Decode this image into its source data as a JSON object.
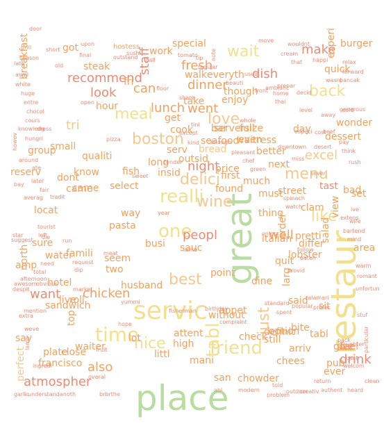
{
  "palette": {
    "orange": "#f3a15e",
    "peach": "#f6c88d",
    "salmon": "#ee8a72",
    "cream": "#f2e08e",
    "green": "#b9dca0"
  },
  "words": [
    {
      "text": "place",
      "c": "green"
    },
    {
      "text": "great",
      "c": "green"
    },
    {
      "text": "restaur",
      "c": "cream"
    },
    {
      "text": "servic",
      "c": "cream"
    },
    {
      "text": "time",
      "c": "cream"
    },
    {
      "text": "friend",
      "c": "cream"
    },
    {
      "text": "tabl",
      "c": "cream"
    },
    {
      "text": "realli",
      "c": "cream"
    },
    {
      "text": "one",
      "c": "cream"
    },
    {
      "text": "nice",
      "c": "cream"
    },
    {
      "text": "meal",
      "c": "cream"
    },
    {
      "text": "wait",
      "c": "cream"
    },
    {
      "text": "back",
      "c": "cream"
    },
    {
      "text": "like",
      "c": "cream"
    },
    {
      "text": "menu",
      "c": "peach"
    },
    {
      "text": "boston",
      "c": "peach"
    },
    {
      "text": "just",
      "c": "peach"
    },
    {
      "text": "best",
      "c": "peach"
    },
    {
      "text": "delici",
      "c": "peach"
    },
    {
      "text": "wine",
      "c": "peach"
    },
    {
      "text": "love",
      "c": "peach"
    },
    {
      "text": "staff",
      "c": "salmon"
    },
    {
      "text": "dish",
      "c": "salmon"
    },
    {
      "text": "make",
      "c": "salmon"
    },
    {
      "text": "recommend",
      "c": "salmon"
    },
    {
      "text": "look",
      "c": "salmon"
    },
    {
      "text": "tri",
      "c": "peach"
    },
    {
      "text": "excel",
      "c": "peach"
    },
    {
      "text": "dinner",
      "c": "orange"
    },
    {
      "text": "fresh",
      "c": "orange"
    },
    {
      "text": "can",
      "c": "orange"
    },
    {
      "text": "well",
      "c": "orange"
    },
    {
      "text": "lunch",
      "c": "orange"
    },
    {
      "text": "went",
      "c": "orange"
    },
    {
      "text": "drink",
      "c": "salmon"
    },
    {
      "text": "chicken",
      "c": "orange"
    },
    {
      "text": "want",
      "c": "salmon"
    },
    {
      "text": "also",
      "c": "orange"
    },
    {
      "text": "atmospher",
      "c": "salmon"
    },
    {
      "text": "peopl",
      "c": "salmon"
    },
    {
      "text": "night",
      "c": "salmon"
    },
    {
      "text": "serv",
      "c": "orange"
    },
    {
      "text": "salad",
      "c": "orange"
    },
    {
      "text": "order",
      "c": "orange"
    },
    {
      "text": "definit",
      "c": "orange"
    },
    {
      "text": "san",
      "c": "orange"
    },
    {
      "text": "dine",
      "c": "orange"
    },
    {
      "text": "mani",
      "c": "orange"
    },
    {
      "text": "waiter",
      "c": "orange"
    },
    {
      "text": "francisco",
      "c": "orange"
    },
    {
      "text": "perfect",
      "c": "peach"
    },
    {
      "text": "chees",
      "c": "orange"
    },
    {
      "text": "hotel",
      "c": "orange"
    },
    {
      "text": "fri",
      "c": "orange"
    },
    {
      "text": "small",
      "c": "orange"
    },
    {
      "text": "price",
      "c": "orange"
    },
    {
      "text": "experi",
      "c": "orange"
    },
    {
      "text": "special",
      "c": "orange"
    },
    {
      "text": "quick",
      "c": "orange"
    },
    {
      "text": "bread",
      "c": "peach"
    },
    {
      "text": "breakfast",
      "c": "orange"
    },
    {
      "text": "tast",
      "c": "salmon"
    },
    {
      "text": "pasta",
      "c": "orange"
    },
    {
      "text": "busi",
      "c": "orange"
    },
    {
      "text": "arriv",
      "c": "orange"
    },
    {
      "text": "lobster",
      "c": "orange"
    },
    {
      "text": "got",
      "c": "orange"
    },
    {
      "text": "steak",
      "c": "orange"
    },
    {
      "text": "locat",
      "c": "orange"
    },
    {
      "text": "walk",
      "c": "orange"
    },
    {
      "text": "everyth",
      "c": "orange"
    },
    {
      "text": "lot",
      "c": "orange"
    },
    {
      "text": "though",
      "c": "orange"
    },
    {
      "text": "sauc",
      "c": "orange"
    },
    {
      "text": "first",
      "c": "orange"
    },
    {
      "text": "much",
      "c": "orange"
    },
    {
      "text": "husband",
      "c": "orange"
    },
    {
      "text": "came",
      "c": "orange"
    },
    {
      "text": "dont",
      "c": "orange"
    },
    {
      "text": "enjoy",
      "c": "orange"
    },
    {
      "text": "know",
      "c": "orange"
    },
    {
      "text": "amp",
      "c": "orange"
    },
    {
      "text": "famili",
      "c": "orange"
    },
    {
      "text": "two",
      "c": "orange"
    },
    {
      "text": "came",
      "c": "orange"
    },
    {
      "text": "seem",
      "c": "orange"
    },
    {
      "text": "bar",
      "c": "orange"
    },
    {
      "text": "full",
      "c": "orange"
    },
    {
      "text": "high",
      "c": "orange"
    },
    {
      "text": "littl",
      "c": "orange"
    },
    {
      "text": "appet",
      "c": "orange"
    },
    {
      "text": "say",
      "c": "orange"
    },
    {
      "text": "attent",
      "c": "orange"
    },
    {
      "text": "long",
      "c": "orange"
    },
    {
      "text": "still",
      "c": "orange"
    },
    {
      "text": "wonder",
      "c": "orange"
    },
    {
      "text": "seafood",
      "c": "orange"
    },
    {
      "text": "said",
      "c": "orange"
    },
    {
      "text": "better",
      "c": "orange"
    },
    {
      "text": "dessert",
      "c": "orange"
    },
    {
      "text": "get",
      "c": "orange"
    },
    {
      "text": "take",
      "c": "orange"
    },
    {
      "text": "even",
      "c": "orange"
    },
    {
      "text": "select",
      "c": "orange"
    },
    {
      "text": "street",
      "c": "orange"
    },
    {
      "text": "clam",
      "c": "orange"
    },
    {
      "text": "day",
      "c": "orange"
    },
    {
      "text": "sit",
      "c": "orange"
    },
    {
      "text": "way",
      "c": "orange"
    },
    {
      "text": "burger",
      "c": "orange"
    },
    {
      "text": "hour",
      "c": "orange"
    },
    {
      "text": "quit",
      "c": "orange"
    },
    {
      "text": "chowder",
      "c": "orange"
    },
    {
      "text": "must",
      "c": "orange"
    },
    {
      "text": "pretti",
      "c": "orange"
    },
    {
      "text": "italian",
      "c": "orange"
    },
    {
      "text": "differ",
      "c": "orange"
    },
    {
      "text": "tabl",
      "c": "orange"
    },
    {
      "text": "without",
      "c": "orange"
    },
    {
      "text": "check",
      "c": "orange"
    },
    {
      "text": "option",
      "c": "orange"
    },
    {
      "text": "waitress",
      "c": "orange"
    },
    {
      "text": "server",
      "c": "orange"
    },
    {
      "text": "cook",
      "c": "orange"
    },
    {
      "text": "outsid",
      "c": "orange"
    },
    {
      "text": "found",
      "c": "orange"
    },
    {
      "text": "sure",
      "c": "orange"
    },
    {
      "text": "water",
      "c": "orange"
    },
    {
      "text": "next",
      "c": "orange"
    },
    {
      "text": "thing",
      "c": "orange"
    },
    {
      "text": "work",
      "c": "orange"
    },
    {
      "text": "insid",
      "c": "orange"
    },
    {
      "text": "point",
      "c": "orange"
    },
    {
      "text": "fish",
      "c": "orange"
    },
    {
      "text": "qualiti",
      "c": "orange"
    },
    {
      "text": "group",
      "c": "orange"
    },
    {
      "text": "hostess",
      "c": "orange"
    },
    {
      "text": "size",
      "c": "orange"
    },
    {
      "text": "bad",
      "c": "orange"
    },
    {
      "text": "reserv",
      "c": "orange"
    },
    {
      "text": "set",
      "c": "orange"
    },
    {
      "text": "view",
      "c": "orange"
    },
    {
      "text": "area",
      "c": "orange"
    },
    {
      "text": "larg",
      "c": "orange"
    },
    {
      "text": "north",
      "c": "orange"
    },
    {
      "text": "sandwich",
      "c": "orange"
    },
    {
      "text": "live",
      "c": "orange"
    },
    {
      "text": "roll",
      "c": "orange"
    },
    {
      "text": "top",
      "c": "orange"
    },
    {
      "text": "plate",
      "c": "orange"
    },
    {
      "text": "close",
      "c": "orange"
    },
    {
      "text": "pub",
      "c": "orange"
    },
    {
      "text": "ever",
      "c": "orange"
    },
    {
      "text": "give",
      "c": "orange"
    },
    {
      "text": "feel",
      "c": "orange"
    },
    {
      "text": "bite",
      "c": "orange"
    },
    {
      "text": "grill",
      "c": "orange"
    },
    {
      "text": "short",
      "c": "salmon"
    },
    {
      "text": "upon",
      "c": "salmon"
    },
    {
      "text": "move",
      "c": "salmon"
    },
    {
      "text": "wouldnt",
      "c": "salmon"
    },
    {
      "text": "final",
      "c": "salmon"
    },
    {
      "text": "outstand",
      "c": "salmon"
    },
    {
      "text": "sushi",
      "c": "salmon"
    },
    {
      "text": "call",
      "c": "salmon"
    },
    {
      "text": "tomato",
      "c": "salmon"
    },
    {
      "text": "tip",
      "c": "salmon"
    },
    {
      "text": "note",
      "c": "salmon"
    },
    {
      "text": "cream",
      "c": "salmon"
    },
    {
      "text": "happi",
      "c": "salmon"
    },
    {
      "text": "late",
      "c": "salmon"
    },
    {
      "text": "season",
      "c": "salmon"
    },
    {
      "text": "avail",
      "c": "salmon"
    },
    {
      "text": "white",
      "c": "salmon"
    },
    {
      "text": "huge",
      "c": "salmon"
    },
    {
      "text": "entre",
      "c": "salmon"
    },
    {
      "text": "chocol",
      "c": "salmon"
    },
    {
      "text": "cours",
      "c": "salmon"
    },
    {
      "text": "knowledg",
      "c": "salmon"
    },
    {
      "text": "dress",
      "c": "salmon"
    },
    {
      "text": "hungri",
      "c": "salmon"
    },
    {
      "text": "howev",
      "c": "salmon"
    },
    {
      "text": "around",
      "c": "salmon"
    },
    {
      "text": "ate",
      "c": "salmon"
    },
    {
      "text": "bay",
      "c": "salmon"
    },
    {
      "text": "later",
      "c": "salmon"
    },
    {
      "text": "fair",
      "c": "salmon"
    },
    {
      "text": "averag",
      "c": "salmon"
    },
    {
      "text": "tradit",
      "c": "salmon"
    },
    {
      "text": "tourist",
      "c": "salmon"
    },
    {
      "text": "star",
      "c": "salmon"
    },
    {
      "text": "left",
      "c": "salmon"
    },
    {
      "text": "suggest",
      "c": "salmon"
    },
    {
      "text": "die",
      "c": "salmon"
    },
    {
      "text": "run",
      "c": "salmon"
    },
    {
      "text": "need",
      "c": "salmon"
    },
    {
      "text": "total",
      "c": "salmon"
    },
    {
      "text": "afternoon",
      "c": "salmon"
    },
    {
      "text": "awesom",
      "c": "salmon"
    },
    {
      "text": "obvious",
      "c": "salmon"
    },
    {
      "text": "despit",
      "c": "salmon"
    },
    {
      "text": "mention",
      "c": "salmon"
    },
    {
      "text": "extra",
      "c": "salmon"
    },
    {
      "text": "weve",
      "c": "salmon"
    },
    {
      "text": "lamb",
      "c": "salmon"
    },
    {
      "text": "ingredi",
      "c": "salmon"
    },
    {
      "text": "garlic",
      "c": "salmon"
    },
    {
      "text": "understand",
      "c": "salmon"
    },
    {
      "text": "anoth",
      "c": "salmon"
    },
    {
      "text": "brbrthe",
      "c": "salmon"
    },
    {
      "text": "abl",
      "c": "salmon"
    },
    {
      "text": "modern",
      "c": "salmon"
    },
    {
      "text": "problem",
      "c": "salmon"
    },
    {
      "text": "outdoor",
      "c": "salmon"
    },
    {
      "text": "creativ",
      "c": "salmon"
    },
    {
      "text": "authent",
      "c": "salmon"
    },
    {
      "text": "heard",
      "c": "salmon"
    },
    {
      "text": "told",
      "c": "salmon"
    },
    {
      "text": "return",
      "c": "salmon"
    },
    {
      "text": "welcom",
      "c": "salmon"
    },
    {
      "text": "cant",
      "c": "salmon"
    },
    {
      "text": "basic",
      "c": "salmon"
    },
    {
      "text": "pack",
      "c": "salmon"
    },
    {
      "text": "particular",
      "c": "salmon"
    },
    {
      "text": "stuf",
      "c": "salmon"
    },
    {
      "text": "unfortun",
      "c": "salmon"
    },
    {
      "text": "romant",
      "c": "salmon"
    },
    {
      "text": "warm",
      "c": "salmon"
    },
    {
      "text": "share",
      "c": "salmon"
    },
    {
      "text": "floor",
      "c": "salmon"
    },
    {
      "text": "except",
      "c": "salmon"
    },
    {
      "text": "tini",
      "c": "salmon"
    },
    {
      "text": "kind",
      "c": "salmon"
    },
    {
      "text": "enough",
      "c": "salmon"
    },
    {
      "text": "pleasant",
      "c": "salmon"
    },
    {
      "text": "chef",
      "c": "salmon"
    },
    {
      "text": "green",
      "c": "salmon"
    },
    {
      "text": "tender",
      "c": "salmon"
    },
    {
      "text": "that",
      "c": "salmon"
    },
    {
      "text": "relax",
      "c": "salmon"
    },
    {
      "text": "forward",
      "c": "salmon"
    },
    {
      "text": "pancak",
      "c": "salmon"
    },
    {
      "text": "wasnt",
      "c": "salmon"
    },
    {
      "text": "prepar",
      "c": "salmon"
    },
    {
      "text": "decid",
      "c": "salmon"
    },
    {
      "text": "level",
      "c": "salmon"
    },
    {
      "text": "cold",
      "c": "salmon"
    },
    {
      "text": "away",
      "c": "salmon"
    },
    {
      "text": "especi",
      "c": "salmon"
    },
    {
      "text": "beef",
      "c": "salmon"
    },
    {
      "text": "pay",
      "c": "salmon"
    },
    {
      "text": "think",
      "c": "salmon"
    },
    {
      "text": "rush",
      "c": "salmon"
    },
    {
      "text": "miss",
      "c": "salmon"
    },
    {
      "text": "desert",
      "c": "salmon"
    },
    {
      "text": "spinach",
      "c": "salmon"
    },
    {
      "text": "watch",
      "c": "salmon"
    },
    {
      "text": "ive",
      "c": "salmon"
    },
    {
      "text": "wife",
      "c": "salmon"
    },
    {
      "text": "bartend",
      "c": "salmon"
    },
    {
      "text": "mind",
      "c": "salmon"
    },
    {
      "text": "extens",
      "c": "salmon"
    },
    {
      "text": "follow",
      "c": "salmon"
    },
    {
      "text": "eaten",
      "c": "salmon"
    },
    {
      "text": "request",
      "c": "salmon"
    },
    {
      "text": "dip",
      "c": "salmon"
    },
    {
      "text": "meat",
      "c": "salmon"
    },
    {
      "text": "market",
      "c": "salmon"
    },
    {
      "text": "overal",
      "c": "salmon"
    },
    {
      "text": "fruit",
      "c": "salmon"
    },
    {
      "text": "hope",
      "c": "salmon"
    },
    {
      "text": "yummi",
      "c": "salmon"
    },
    {
      "text": "fisherman",
      "c": "salmon"
    },
    {
      "text": "birthday",
      "c": "salmon"
    },
    {
      "text": "complaint",
      "c": "salmon"
    },
    {
      "text": "standard",
      "c": "salmon"
    },
    {
      "text": "spent",
      "c": "salmon"
    },
    {
      "text": "usual",
      "c": "salmon"
    },
    {
      "text": "beauti",
      "c": "salmon"
    },
    {
      "text": "front",
      "c": "salmon"
    },
    {
      "text": "ambianc",
      "c": "salmon"
    },
    {
      "text": "thai",
      "c": "salmon"
    },
    {
      "text": "home",
      "c": "salmon"
    },
    {
      "text": "cost",
      "c": "salmon"
    },
    {
      "text": "downtown",
      "c": "salmon"
    },
    {
      "text": "whole",
      "c": "salmon"
    },
    {
      "text": "regular",
      "c": "salmon"
    },
    {
      "text": "sever",
      "c": "salmon"
    },
    {
      "text": "generous",
      "c": "salmon"
    },
    {
      "text": "calamari",
      "c": "salmon"
    },
    {
      "text": "popular",
      "c": "salmon"
    },
    {
      "text": "onion",
      "c": "salmon"
    },
    {
      "text": "provid",
      "c": "salmon"
    },
    {
      "text": "prefer",
      "c": "salmon"
    },
    {
      "text": "daughter",
      "c": "salmon"
    },
    {
      "text": "clean",
      "c": "salmon"
    },
    {
      "text": "door",
      "c": "salmon"
    },
    {
      "text": "old",
      "c": "salmon"
    },
    {
      "text": "open",
      "c": "salmon"
    },
    {
      "text": "pizza",
      "c": "salmon"
    },
    {
      "text": "sweet",
      "c": "salmon"
    },
    {
      "text": "year",
      "c": "salmon"
    },
    {
      "text": "lamb",
      "c": "salmon"
    }
  ]
}
